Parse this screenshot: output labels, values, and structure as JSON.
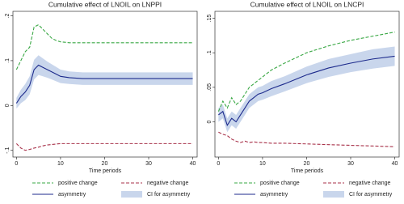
{
  "chart_data": [
    {
      "type": "line",
      "title": "Cumulative effect of LNOIL on LNPPI",
      "x_label": "Time periods",
      "x": [
        0,
        1,
        2,
        3,
        4,
        5,
        6,
        7,
        8,
        9,
        10,
        12,
        15,
        20,
        25,
        30,
        35,
        40
      ],
      "xlim": [
        -0.8,
        41
      ],
      "xticks": [
        0,
        10,
        20,
        30,
        40
      ],
      "ylim": [
        -0.115,
        0.21
      ],
      "yticks": [
        {
          "value": -0.1,
          "label": "-.1"
        },
        0,
        {
          "value": 0.1,
          "label": ".1"
        },
        {
          "value": 0.2,
          "label": ".2"
        }
      ],
      "ci": {
        "name": "CI for asymmetry",
        "color": "#c9d6ec",
        "upper": [
          0.017,
          0.035,
          0.048,
          0.065,
          0.102,
          0.112,
          0.105,
          0.098,
          0.092,
          0.086,
          0.08,
          0.076,
          0.074,
          0.074,
          0.074,
          0.074,
          0.074,
          0.074
        ],
        "lower": [
          -0.007,
          0.005,
          0.012,
          0.025,
          0.058,
          0.068,
          0.065,
          0.062,
          0.058,
          0.054,
          0.05,
          0.048,
          0.046,
          0.046,
          0.046,
          0.046,
          0.046,
          0.046
        ]
      },
      "series": [
        {
          "name": "positive change",
          "color": "#3aa845",
          "style": "dashed",
          "values": [
            0.08,
            0.1,
            0.12,
            0.13,
            0.175,
            0.18,
            0.17,
            0.16,
            0.15,
            0.145,
            0.142,
            0.14,
            0.14,
            0.14,
            0.14,
            0.14,
            0.14,
            0.14
          ]
        },
        {
          "name": "negative change",
          "color": "#a8324a",
          "style": "dashed",
          "values": [
            -0.085,
            -0.095,
            -0.1,
            -0.098,
            -0.095,
            -0.093,
            -0.09,
            -0.088,
            -0.087,
            -0.086,
            -0.085,
            -0.085,
            -0.085,
            -0.085,
            -0.085,
            -0.085,
            -0.085,
            -0.085
          ]
        },
        {
          "name": "asymmetry",
          "color": "#1c2a8c",
          "style": "solid",
          "values": [
            0.005,
            0.02,
            0.03,
            0.045,
            0.08,
            0.09,
            0.085,
            0.08,
            0.075,
            0.07,
            0.065,
            0.062,
            0.06,
            0.06,
            0.06,
            0.06,
            0.06,
            0.06
          ]
        }
      ]
    },
    {
      "type": "line",
      "title": "Cumulative effect of LNOIL on LNCPI",
      "x_label": "Time periods",
      "x": [
        0,
        1,
        2,
        3,
        4,
        5,
        6,
        7,
        8,
        9,
        10,
        12,
        15,
        20,
        25,
        30,
        35,
        40
      ],
      "xlim": [
        -0.8,
        41
      ],
      "xticks": [
        0,
        10,
        20,
        30,
        40
      ],
      "ylim": [
        -0.051,
        0.16
      ],
      "yticks": [
        0,
        {
          "value": 0.05,
          "label": ".05"
        },
        {
          "value": 0.1,
          "label": ".1"
        },
        {
          "value": 0.15,
          "label": ".15"
        }
      ],
      "ci": {
        "name": "CI for asymmetry",
        "color": "#c9d6ec",
        "upper": [
          0.02,
          0.025,
          0.005,
          0.015,
          0.01,
          0.02,
          0.03,
          0.04,
          0.045,
          0.05,
          0.052,
          0.059,
          0.066,
          0.08,
          0.091,
          0.098,
          0.105,
          0.109
        ],
        "lower": [
          0.0,
          0.005,
          -0.015,
          -0.005,
          -0.01,
          0.0,
          0.01,
          0.02,
          0.025,
          0.03,
          0.032,
          0.037,
          0.044,
          0.056,
          0.065,
          0.072,
          0.077,
          0.081
        ]
      },
      "series": [
        {
          "name": "positive change",
          "color": "#3aa845",
          "style": "dashed",
          "values": [
            0.015,
            0.03,
            0.02,
            0.035,
            0.025,
            0.03,
            0.04,
            0.05,
            0.055,
            0.06,
            0.065,
            0.075,
            0.085,
            0.1,
            0.11,
            0.118,
            0.124,
            0.13
          ]
        },
        {
          "name": "negative change",
          "color": "#a8324a",
          "style": "dashed",
          "values": [
            -0.015,
            -0.018,
            -0.02,
            -0.025,
            -0.028,
            -0.03,
            -0.028,
            -0.03,
            -0.029,
            -0.03,
            -0.03,
            -0.031,
            -0.031,
            -0.032,
            -0.033,
            -0.034,
            -0.035,
            -0.036
          ]
        },
        {
          "name": "asymmetry",
          "color": "#1c2a8c",
          "style": "solid",
          "values": [
            0.01,
            0.015,
            -0.005,
            0.005,
            0.0,
            0.01,
            0.02,
            0.03,
            0.035,
            0.04,
            0.042,
            0.048,
            0.055,
            0.068,
            0.078,
            0.085,
            0.091,
            0.095
          ]
        }
      ]
    }
  ]
}
